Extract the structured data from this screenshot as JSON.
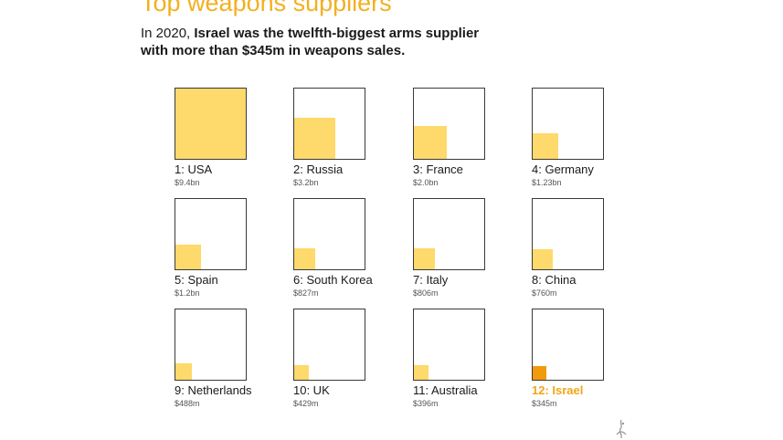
{
  "header": {
    "title": "Top weapons suppliers",
    "subtitle_pre": "In 2020, ",
    "subtitle_bold": "Israel was the twelfth-biggest arms supplier with more than $345m in weapons sales."
  },
  "chart_data": {
    "type": "proportional-area",
    "title": "Top weapons suppliers",
    "subtitle": "In 2020, Israel was the twelfth-biggest arms supplier with more than $345m in weapons sales.",
    "unit": "USD millions",
    "max_value": 9400,
    "items": [
      {
        "rank": 1,
        "label": "1: USA",
        "value_label": "$9.4bn",
        "value": 9400
      },
      {
        "rank": 2,
        "label": "2: Russia",
        "value_label": "$3.2bn",
        "value": 3200
      },
      {
        "rank": 3,
        "label": "3: France",
        "value_label": "$2.0bn",
        "value": 2000
      },
      {
        "rank": 4,
        "label": "4: Germany",
        "value_label": "$1.23bn",
        "value": 1230
      },
      {
        "rank": 5,
        "label": "5: Spain",
        "value_label": "$1.2bn",
        "value": 1200
      },
      {
        "rank": 6,
        "label": "6: South Korea",
        "value_label": "$827m",
        "value": 827
      },
      {
        "rank": 7,
        "label": "7: Italy",
        "value_label": "$806m",
        "value": 806
      },
      {
        "rank": 8,
        "label": "8: China",
        "value_label": "$760m",
        "value": 760
      },
      {
        "rank": 9,
        "label": "9: Netherlands",
        "value_label": "$488m",
        "value": 488
      },
      {
        "rank": 10,
        "label": "10: UK",
        "value_label": "$429m",
        "value": 429
      },
      {
        "rank": 11,
        "label": "11: Australia",
        "value_label": "$396m",
        "value": 396
      },
      {
        "rank": 12,
        "label": "12: Israel",
        "value_label": "$345m",
        "value": 345,
        "highlight": true
      }
    ]
  },
  "colors": {
    "fill": "#fed96b",
    "highlight_fill": "#f29a0e",
    "highlight_text": "#f2a51a",
    "title": "#f2b021"
  },
  "logo": {
    "icon": "al-jazeera-logo-icon"
  }
}
